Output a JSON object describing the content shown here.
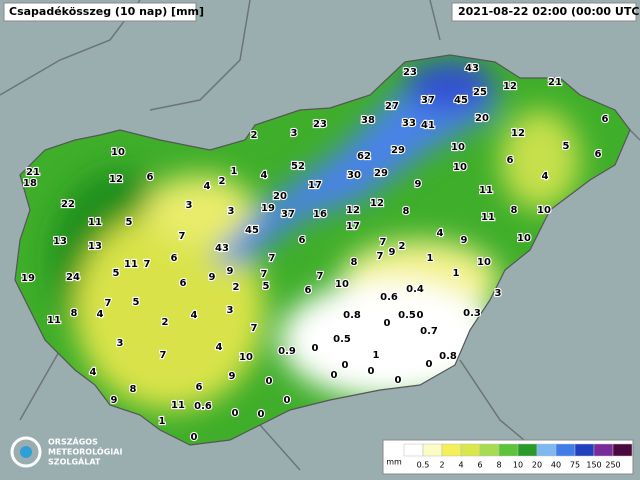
{
  "header": {
    "title": "Csapadékösszeg (10 nap) [mm]",
    "timestamp": "2021-08-22 02:00 (00:00 UTC)"
  },
  "stations": [
    23,
    43,
    37,
    45,
    25,
    12,
    21,
    27,
    38,
    33,
    41,
    20,
    23,
    3,
    2,
    6,
    12,
    5,
    6,
    10,
    62,
    29,
    10,
    52,
    1,
    30,
    29,
    10,
    6,
    4,
    21,
    18,
    12,
    6,
    4,
    2,
    4,
    17,
    9,
    11,
    3,
    20,
    19,
    37,
    16,
    12,
    12,
    8,
    8,
    10,
    22,
    11,
    5,
    3,
    17,
    11,
    13,
    13,
    7,
    45,
    6,
    4,
    9,
    10,
    43,
    7,
    2,
    9,
    7,
    5,
    11,
    7,
    6,
    1,
    10,
    19,
    24,
    9,
    7,
    7,
    8,
    7,
    1,
    6,
    9,
    6,
    10,
    2,
    5,
    0.4,
    3,
    7,
    5,
    4,
    8,
    0.6,
    0,
    0.5,
    11,
    3,
    4,
    2,
    0.8,
    0.3,
    0,
    3,
    7,
    4,
    0.5,
    0.7,
    7,
    0.9,
    0,
    10,
    1,
    0.8,
    0,
    0,
    4,
    9,
    0,
    0,
    0,
    8,
    6,
    0,
    9,
    0,
    11,
    0.6,
    0,
    0,
    1,
    0
  ],
  "legend": {
    "unit": "mm",
    "labels": [
      0.5,
      2,
      4,
      6,
      8,
      10,
      20,
      40,
      75,
      150,
      250
    ]
  },
  "logo": {
    "lines": [
      "ORSZÁGOS",
      "METEOROLÓGIAI",
      "SZOLGÁLAT"
    ]
  }
}
